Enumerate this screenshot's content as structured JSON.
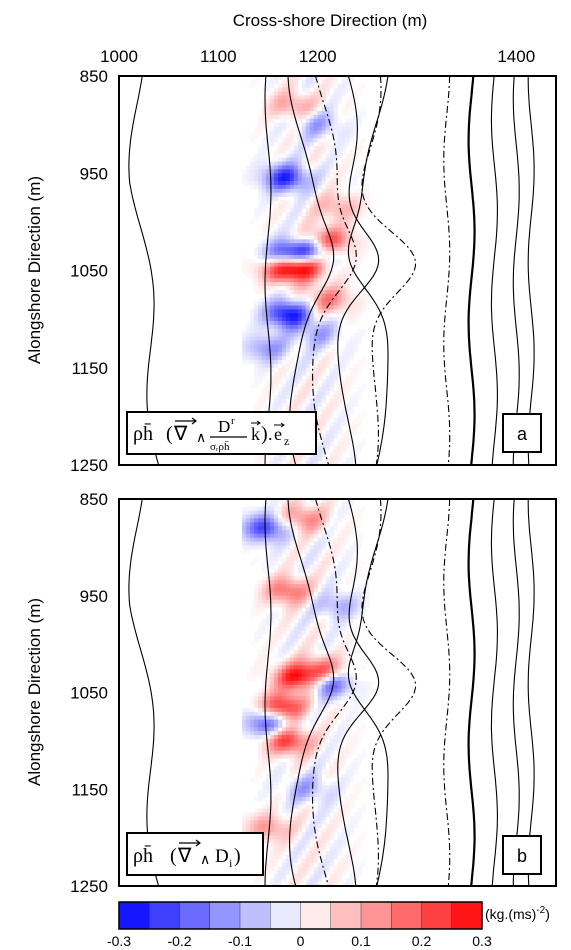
{
  "chart_data": [
    {
      "type": "heatmap",
      "panel_label": "a",
      "formula": {
        "lead": "ρh̄",
        "nabla": "∇",
        "wedge": "∧",
        "numerator": "D",
        "num_sup": "r",
        "denominator": "σᵣρh̄",
        "k": "k",
        "dot": ".",
        "e": "e",
        "e_sub": "z"
      },
      "xlabel": "Cross-shore Direction (m)",
      "ylabel": "Alongshore Direction (m)",
      "xlim": [
        1000,
        1440
      ],
      "ylim": [
        850,
        1250
      ],
      "x_ticks": [
        1000,
        1100,
        1200,
        1400
      ],
      "y_ticks": [
        850,
        950,
        1050,
        1150,
        1250
      ],
      "features": [
        {
          "x": 1185,
          "y": 1045,
          "v": 0.3
        },
        {
          "x": 1210,
          "y": 1020,
          "v": 0.24
        },
        {
          "x": 1165,
          "y": 1048,
          "v": 0.25
        },
        {
          "x": 1170,
          "y": 1035,
          "v": -0.3
        },
        {
          "x": 1195,
          "y": 1030,
          "v": -0.22
        },
        {
          "x": 1168,
          "y": 955,
          "v": -0.25
        },
        {
          "x": 1170,
          "y": 1095,
          "v": -0.28
        },
        {
          "x": 1210,
          "y": 1080,
          "v": 0.15
        },
        {
          "x": 1175,
          "y": 880,
          "v": 0.12
        },
        {
          "x": 1220,
          "y": 985,
          "v": 0.1
        },
        {
          "x": 1150,
          "y": 1130,
          "v": -0.12
        },
        {
          "x": 1200,
          "y": 1115,
          "v": -0.1
        },
        {
          "x": 1200,
          "y": 900,
          "v": -0.1
        }
      ]
    },
    {
      "type": "heatmap",
      "panel_label": "b",
      "formula": {
        "lead": "ρh̄",
        "nabla": "∇",
        "wedge": "∧",
        "d": "D",
        "d_sub": "i"
      },
      "xlabel": "",
      "ylabel": "Alongshore Direction (m)",
      "xlim": [
        1000,
        1440
      ],
      "ylim": [
        850,
        1250
      ],
      "x_ticks": [],
      "y_ticks": [
        850,
        950,
        1050,
        1150,
        1250
      ],
      "features": [
        {
          "x": 1180,
          "y": 1035,
          "v": 0.28
        },
        {
          "x": 1205,
          "y": 1028,
          "v": 0.22
        },
        {
          "x": 1165,
          "y": 1065,
          "v": 0.26
        },
        {
          "x": 1170,
          "y": 1100,
          "v": 0.24
        },
        {
          "x": 1170,
          "y": 945,
          "v": 0.18
        },
        {
          "x": 1210,
          "y": 1040,
          "v": -0.24
        },
        {
          "x": 1150,
          "y": 1082,
          "v": -0.2
        },
        {
          "x": 1147,
          "y": 880,
          "v": -0.22
        },
        {
          "x": 1220,
          "y": 960,
          "v": -0.1
        },
        {
          "x": 1185,
          "y": 870,
          "v": 0.15
        },
        {
          "x": 1150,
          "y": 1190,
          "v": 0.12
        },
        {
          "x": 1190,
          "y": 1150,
          "v": -0.1
        }
      ]
    }
  ],
  "colorbar": {
    "min": -0.3,
    "max": 0.3,
    "ticks": [
      "-0.3",
      "-0.2",
      "-0.1",
      "0",
      "0.1",
      "0.2",
      "0.3"
    ],
    "unit": "(kg.(ms)",
    "unit_sup": "-2",
    "unit_close": ")",
    "negative_color": "#0000ff",
    "positive_color": "#ff0000"
  }
}
